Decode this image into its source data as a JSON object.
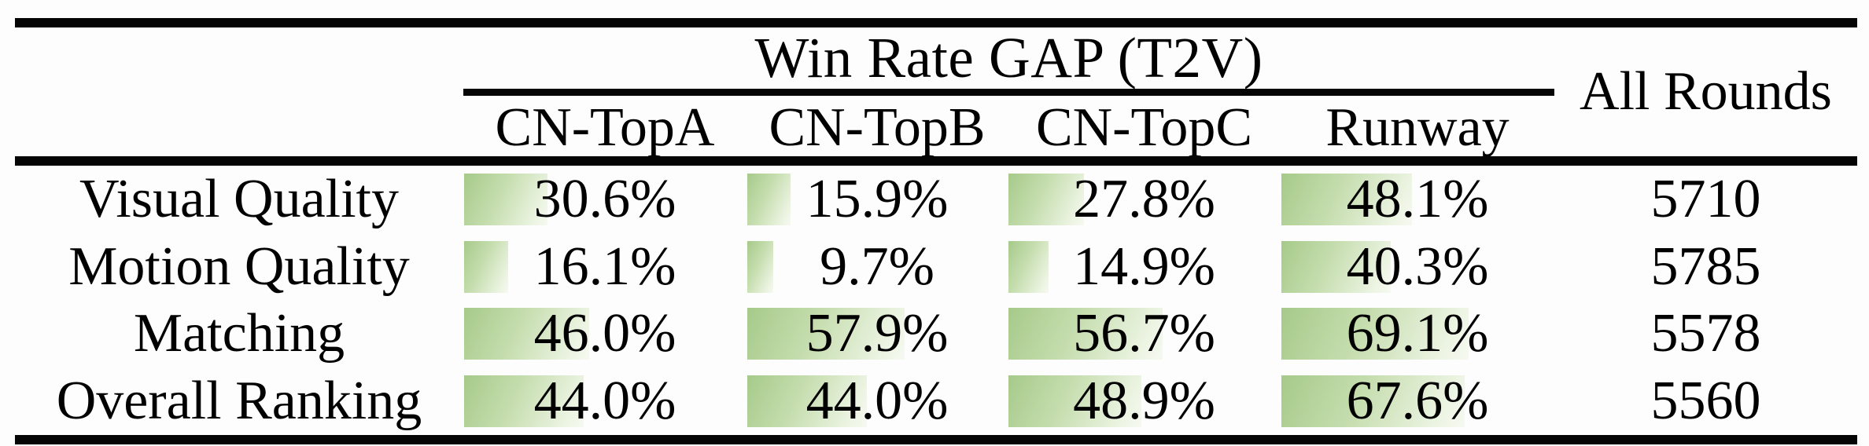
{
  "table": {
    "group_header": "Win Rate GAP (T2V)",
    "all_rounds_header": "All Rounds",
    "columns": [
      "CN-TopA",
      "CN-TopB",
      "CN-TopC",
      "Runway"
    ],
    "rows": [
      {
        "label": "Visual Quality",
        "values": [
          "30.6%",
          "15.9%",
          "27.8%",
          "48.1%"
        ],
        "percents": [
          30.6,
          15.9,
          27.8,
          48.1
        ],
        "all_rounds": "5710"
      },
      {
        "label": "Motion Quality",
        "values": [
          "16.1%",
          "9.7%",
          "14.9%",
          "40.3%"
        ],
        "percents": [
          16.1,
          9.7,
          14.9,
          40.3
        ],
        "all_rounds": "5785"
      },
      {
        "label": "Matching",
        "values": [
          "46.0%",
          "57.9%",
          "56.7%",
          "69.1%"
        ],
        "percents": [
          46.0,
          57.9,
          56.7,
          69.1
        ],
        "all_rounds": "5578"
      },
      {
        "label": "Overall Ranking",
        "values": [
          "44.0%",
          "44.0%",
          "48.9%",
          "67.6%"
        ],
        "percents": [
          44.0,
          44.0,
          48.9,
          67.6
        ],
        "all_rounds": "5560"
      }
    ]
  },
  "colors": {
    "bar_gradient_start": "#a6ca8a",
    "bar_gradient_end": "#f6f9f1",
    "rule": "#050505",
    "text": "#000000"
  },
  "chart_data": {
    "type": "table",
    "title": "Win Rate GAP (T2V)",
    "columns": [
      "CN-TopA",
      "CN-TopB",
      "CN-TopC",
      "Runway",
      "All Rounds"
    ],
    "categories": [
      "Visual Quality",
      "Motion Quality",
      "Matching",
      "Overall Ranking"
    ],
    "series": [
      {
        "name": "CN-TopA",
        "values": [
          30.6,
          16.1,
          46.0,
          44.0
        ]
      },
      {
        "name": "CN-TopB",
        "values": [
          15.9,
          9.7,
          57.9,
          44.0
        ]
      },
      {
        "name": "CN-TopC",
        "values": [
          27.8,
          14.9,
          56.7,
          48.9
        ]
      },
      {
        "name": "Runway",
        "values": [
          48.1,
          40.3,
          69.1,
          67.6
        ]
      }
    ],
    "all_rounds": [
      5710,
      5785,
      5578,
      5560
    ],
    "unit": "percent",
    "bar_scale": "cell data bars, 0-100% of cell width",
    "legend_position": "none",
    "grid": false
  }
}
